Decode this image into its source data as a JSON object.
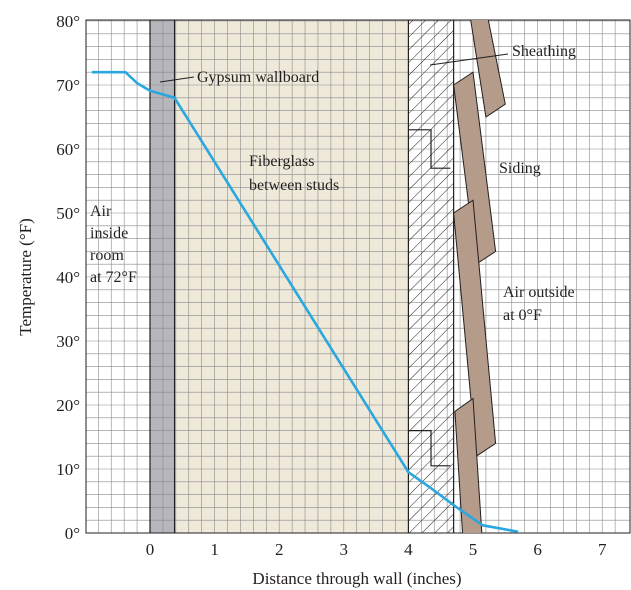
{
  "chart_data": {
    "type": "line",
    "xlabel": "Distance through wall (inches)",
    "ylabel": "Temperature (°F)",
    "xlim": [
      -0.9,
      7.3
    ],
    "ylim": [
      0,
      80
    ],
    "x_ticks": [
      "0",
      "1",
      "2",
      "3",
      "4",
      "5",
      "6",
      "7"
    ],
    "y_ticks": [
      "0°",
      "10°",
      "20°",
      "30°",
      "40°",
      "50°",
      "60°",
      "70°",
      "80°"
    ],
    "grid": true,
    "series": [
      {
        "x": [
          -0.9,
          -0.38,
          -0.2,
          0,
          0.38,
          4.0,
          4.35,
          4.75,
          5.15,
          5.7
        ],
        "y": [
          72,
          72,
          70.3,
          69.1,
          68,
          9.5,
          7,
          4,
          1.2,
          0.2
        ]
      }
    ],
    "annotations": {
      "air_inside": [
        "Air",
        "inside",
        "room",
        "at 72°F"
      ],
      "gypsum": "Gypsum wallboard",
      "fiberglass": [
        "Fiberglass",
        "between studs"
      ],
      "sheathing": "Sheathing",
      "siding": "Siding",
      "air_outside": [
        "Air outside",
        "at 0°F"
      ]
    },
    "layers": [
      {
        "name": "gypsum",
        "x": [
          0,
          0.38
        ],
        "color": "#b6b6bd"
      },
      {
        "name": "fiberglass",
        "x": [
          0.38,
          4.0
        ],
        "color": "#efe9da"
      },
      {
        "name": "sheathing",
        "x": [
          4.0,
          4.7
        ],
        "color": "#ffffff"
      }
    ],
    "colors": {
      "line": "#2aa7df",
      "grid": "#8a8a8a",
      "siding": "#b59b8a",
      "text": "#231f20"
    }
  }
}
